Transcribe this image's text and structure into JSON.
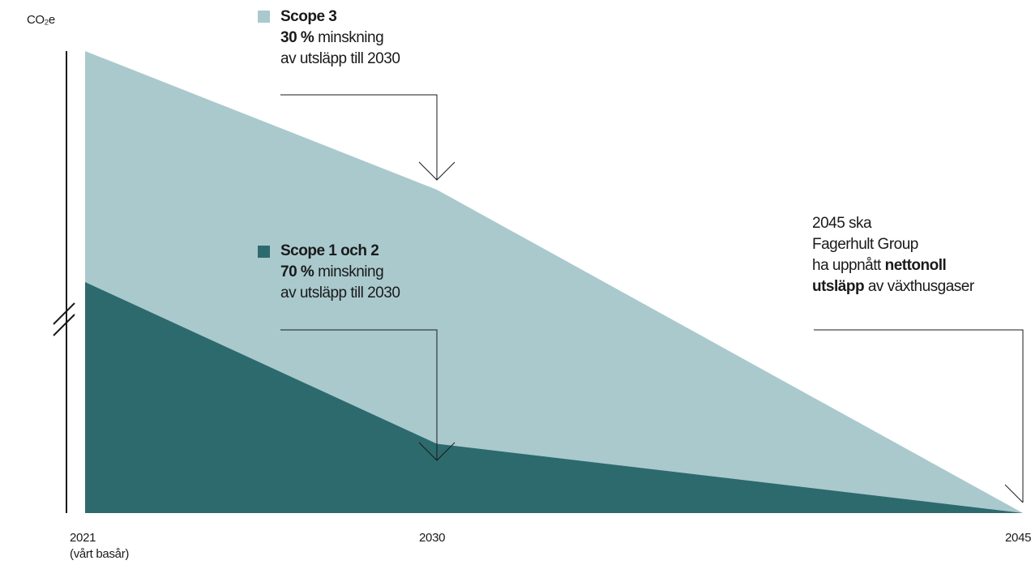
{
  "chart_data": {
    "type": "area",
    "y_unit": "CO₂e",
    "x": [
      2021,
      2030,
      2045
    ],
    "x_ticks": [
      "2021",
      "2030",
      "2045"
    ],
    "x_tick_sublabel": "(vårt basår)",
    "series": [
      {
        "name": "Scope 1 och 2",
        "values": [
          100,
          30,
          0
        ],
        "color": "#2d6a6e"
      },
      {
        "name": "Scope 3",
        "values": [
          200,
          140,
          0
        ],
        "color": "#a9c9cd"
      }
    ],
    "y_axis_break": true,
    "annotations": [
      {
        "series": "Scope 3",
        "heading": "Scope 3",
        "value": "30 %",
        "text": "minskning",
        "line2": "av utsläpp till 2030"
      },
      {
        "series": "Scope 1 och 2",
        "heading": "Scope 1 och 2",
        "value": "70 %",
        "text": "minskning",
        "line2": "av utsläpp till 2030"
      },
      {
        "line1": "2045 ska",
        "line2": "Fagerhult Group",
        "line3_pre": "ha uppnått",
        "line3_bold": "nettonoll",
        "line4_bold": "utsläpp",
        "line4_post": "av växthusgaser"
      }
    ]
  }
}
